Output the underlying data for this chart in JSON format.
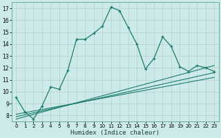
{
  "xlabel": "Humidex (Indice chaleur)",
  "background_color": "#cdeaea",
  "grid_color": "#b8d4d4",
  "line_color": "#1a7a6a",
  "x_values": [
    0,
    1,
    2,
    3,
    4,
    5,
    6,
    7,
    8,
    9,
    10,
    11,
    12,
    13,
    14,
    15,
    16,
    17,
    18,
    19,
    20,
    21,
    22,
    23
  ],
  "main_line": [
    9.5,
    8.3,
    7.7,
    8.8,
    10.4,
    10.2,
    11.8,
    14.4,
    14.4,
    14.9,
    15.5,
    17.1,
    16.8,
    15.4,
    14.0,
    11.9,
    12.8,
    14.6,
    13.8,
    12.1,
    11.7,
    12.2,
    12.0,
    11.7
  ],
  "reg_lines": [
    {
      "x0": 0,
      "y0": 7.7,
      "x1": 23,
      "y1": 12.2
    },
    {
      "x0": 0,
      "y0": 7.9,
      "x1": 23,
      "y1": 11.6
    },
    {
      "x0": 0,
      "y0": 8.1,
      "x1": 23,
      "y1": 11.2
    }
  ],
  "xlim": [
    -0.5,
    23.5
  ],
  "ylim": [
    7.5,
    17.5
  ],
  "yticks": [
    8,
    9,
    10,
    11,
    12,
    13,
    14,
    15,
    16,
    17
  ],
  "xticks": [
    0,
    1,
    2,
    3,
    4,
    5,
    6,
    7,
    8,
    9,
    10,
    11,
    12,
    13,
    14,
    15,
    16,
    17,
    18,
    19,
    20,
    21,
    22,
    23
  ]
}
